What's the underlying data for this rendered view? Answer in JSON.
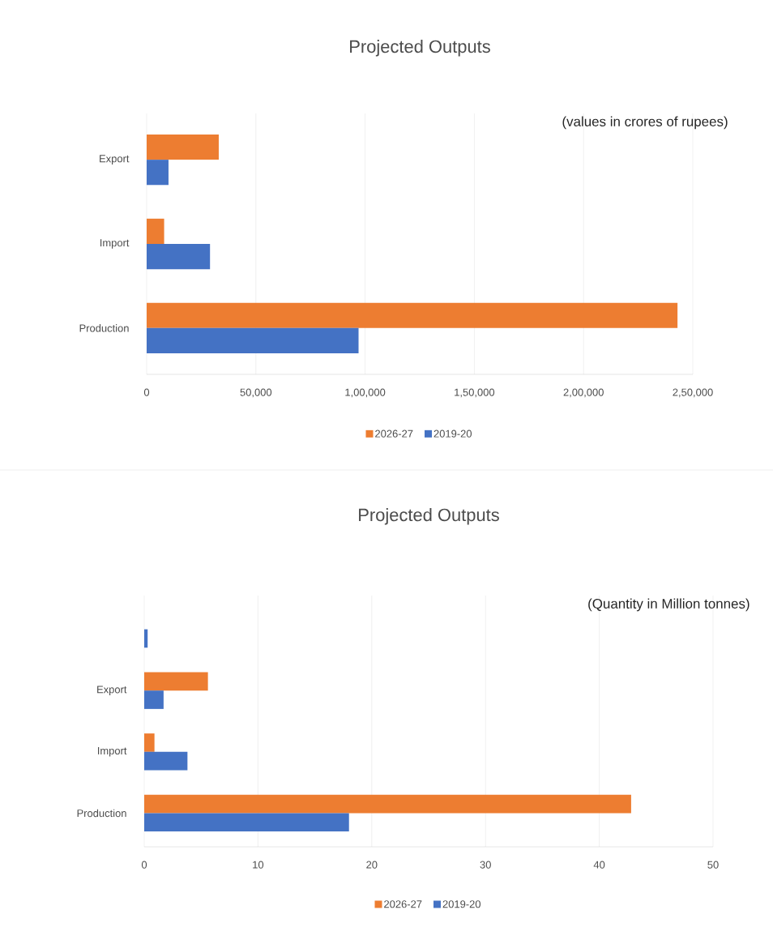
{
  "chart_data": [
    {
      "type": "bar",
      "orientation": "horizontal",
      "title": "Projected Outputs",
      "annotations": [
        "(values in crores of rupees)"
      ],
      "categories": [
        "Export",
        "Import",
        "Production"
      ],
      "series": [
        {
          "name": "2026-27",
          "color": "#ed7d31",
          "values": [
            33000,
            8000,
            243000
          ]
        },
        {
          "name": "2019-20",
          "color": "#4472c4",
          "values": [
            10000,
            29000,
            97000
          ]
        }
      ],
      "xlim": [
        0,
        250000
      ],
      "xticks": [
        0,
        {
          "value": 50000,
          "label": "50,000"
        },
        {
          "value": 100000,
          "label": "1,00,000"
        },
        {
          "value": 150000,
          "label": "1,50,000"
        },
        {
          "value": 200000,
          "label": "2,00,000"
        },
        {
          "value": 250000,
          "label": "2,50,000"
        }
      ],
      "grid": "x",
      "legend": "bottom"
    },
    {
      "type": "bar",
      "orientation": "horizontal",
      "title": "Projected Outputs",
      "annotations": [
        "(Quantity in Million tonnes)"
      ],
      "categories": [
        null,
        "Export",
        "Import",
        "Production"
      ],
      "series": [
        {
          "name": "2026-27",
          "color": "#ed7d31",
          "values": [
            0,
            5.6,
            0.9,
            42.8
          ]
        },
        {
          "name": "2019-20",
          "color": "#4472c4",
          "values": [
            0.3,
            1.7,
            3.8,
            18
          ]
        }
      ],
      "xlim": [
        0,
        50
      ],
      "xticks": [
        0,
        10,
        20,
        30,
        40,
        50
      ],
      "grid": "x",
      "legend": "bottom"
    }
  ]
}
